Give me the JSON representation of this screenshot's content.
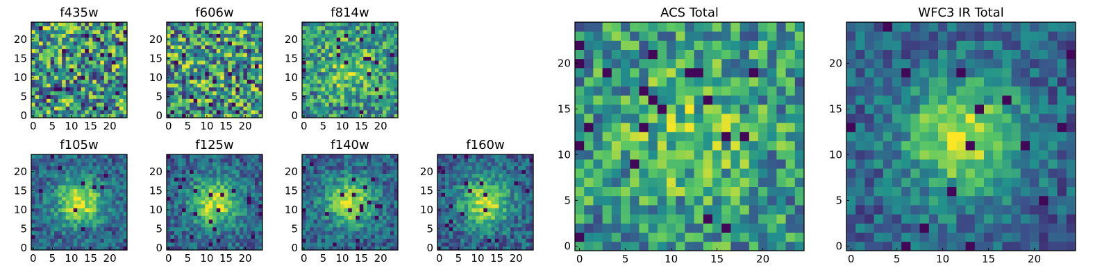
{
  "chart_data": [
    {
      "type": "heatmap",
      "title": "f435w",
      "grid_size": 25,
      "pattern": "noise",
      "seed": 11,
      "xticks": [
        "0",
        "5",
        "10",
        "15",
        "20"
      ],
      "yticks": [
        "0",
        "5",
        "10",
        "15",
        "20"
      ],
      "grid": false,
      "legend": "none"
    },
    {
      "type": "heatmap",
      "title": "f606w",
      "grid_size": 25,
      "pattern": "noise",
      "seed": 23,
      "xticks": [
        "0",
        "5",
        "10",
        "15",
        "20"
      ],
      "yticks": [
        "0",
        "5",
        "10",
        "15",
        "20"
      ],
      "grid": false,
      "legend": "none"
    },
    {
      "type": "heatmap",
      "title": "f814w",
      "grid_size": 25,
      "pattern": "faint-source",
      "seed": 37,
      "xticks": [
        "0",
        "5",
        "10",
        "15",
        "20"
      ],
      "yticks": [
        "0",
        "5",
        "10",
        "15",
        "20"
      ],
      "grid": false,
      "legend": "none"
    },
    {
      "type": "heatmap",
      "title": "f105w",
      "grid_size": 25,
      "pattern": "central-source",
      "seed": 41,
      "xticks": [
        "0",
        "5",
        "10",
        "15",
        "20"
      ],
      "yticks": [
        "0",
        "5",
        "10",
        "15",
        "20"
      ],
      "grid": false,
      "legend": "none"
    },
    {
      "type": "heatmap",
      "title": "f125w",
      "grid_size": 25,
      "pattern": "central-source",
      "seed": 53,
      "xticks": [
        "0",
        "5",
        "10",
        "15",
        "20"
      ],
      "yticks": [
        "0",
        "5",
        "10",
        "15",
        "20"
      ],
      "grid": false,
      "legend": "none"
    },
    {
      "type": "heatmap",
      "title": "f140w",
      "grid_size": 25,
      "pattern": "central-source",
      "seed": 67,
      "xticks": [
        "0",
        "5",
        "10",
        "15",
        "20"
      ],
      "yticks": [
        "0",
        "5",
        "10",
        "15",
        "20"
      ],
      "grid": false,
      "legend": "none"
    },
    {
      "type": "heatmap",
      "title": "f160w",
      "grid_size": 25,
      "pattern": "central-source",
      "seed": 79,
      "xticks": [
        "0",
        "5",
        "10",
        "15",
        "20"
      ],
      "yticks": [
        "0",
        "5",
        "10",
        "15",
        "20"
      ],
      "grid": false,
      "legend": "none"
    },
    {
      "type": "heatmap",
      "title": "ACS Total",
      "grid_size": 25,
      "pattern": "faint-source",
      "seed": 83,
      "xticks": [
        "0",
        "5",
        "10",
        "15",
        "20"
      ],
      "yticks": [
        "0",
        "5",
        "10",
        "15",
        "20"
      ],
      "grid": false,
      "legend": "none"
    },
    {
      "type": "heatmap",
      "title": "WFC3 IR Total",
      "grid_size": 25,
      "pattern": "central-source",
      "seed": 97,
      "xticks": [
        "0",
        "5",
        "10",
        "15",
        "20"
      ],
      "yticks": [
        "0",
        "5",
        "10",
        "15",
        "20"
      ],
      "grid": false,
      "legend": "none"
    }
  ],
  "colormap": [
    "#440154",
    "#3b528b",
    "#21908d",
    "#5dc963",
    "#fde725"
  ]
}
